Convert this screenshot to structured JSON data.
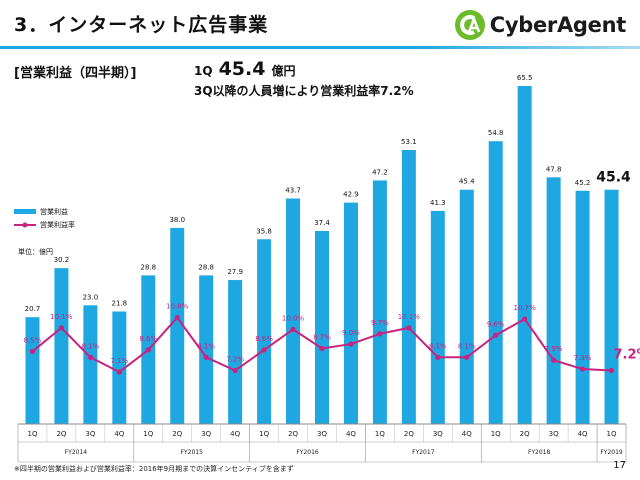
{
  "header": {
    "title": "3．インターネット広告事業",
    "logo_text": "CyberAgent"
  },
  "section_label": "[営業利益（四半期）]",
  "headline": {
    "prefix": "1Q",
    "value": "45.4",
    "suffix": "億円",
    "subline": "3Q以降の人員増により営業利益率7.2%"
  },
  "legend": {
    "bar_label": "営業利益",
    "line_label": "営業利益率"
  },
  "unit_label": "単位：億円",
  "footnote": "※四半期の営業利益および営業利益率：2016年9月期までの決算インセンティブを含まず",
  "page_number": "17",
  "colors": {
    "bar": "#1ea7e1",
    "line": "#c8237e",
    "rule": "#1ea7e1",
    "logo_green": "#6cbb2a"
  },
  "chart_data": {
    "type": "bar",
    "categories": [
      "1Q",
      "2Q",
      "3Q",
      "4Q",
      "1Q",
      "2Q",
      "3Q",
      "4Q",
      "1Q",
      "2Q",
      "3Q",
      "4Q",
      "1Q",
      "2Q",
      "3Q",
      "4Q",
      "1Q",
      "2Q",
      "3Q",
      "4Q",
      "1Q"
    ],
    "fiscal_years": [
      {
        "label": "FY2014",
        "count": 4
      },
      {
        "label": "FY2015",
        "count": 4
      },
      {
        "label": "FY2016",
        "count": 4
      },
      {
        "label": "FY2017",
        "count": 4
      },
      {
        "label": "FY2018",
        "count": 4
      },
      {
        "label": "FY2019",
        "count": 1
      }
    ],
    "series": [
      {
        "name": "営業利益",
        "kind": "bar",
        "values": [
          20.7,
          30.2,
          23.0,
          21.8,
          28.8,
          38.0,
          28.8,
          27.9,
          35.8,
          43.7,
          37.4,
          42.9,
          47.2,
          53.1,
          41.3,
          45.4,
          54.8,
          65.5,
          47.8,
          45.2,
          45.4
        ],
        "labels": [
          "20.7",
          "30.2",
          "23.0",
          "21.8",
          "28.8",
          "38.0",
          "28.8",
          "27.9",
          "35.8",
          "43.7",
          "37.4",
          "42.9",
          "47.2",
          "53.1",
          "41.3",
          "45.4",
          "54.8",
          "65.5",
          "47.8",
          "45.2",
          "45.4"
        ]
      },
      {
        "name": "営業利益率",
        "kind": "line",
        "values": [
          8.5,
          10.1,
          8.1,
          7.1,
          8.6,
          10.8,
          8.1,
          7.2,
          8.6,
          10.0,
          8.7,
          9.0,
          9.7,
          10.1,
          8.1,
          8.1,
          9.6,
          10.7,
          7.9,
          7.3,
          7.2
        ],
        "labels": [
          "8.5%",
          "10.1%",
          "8.1%",
          "7.1%",
          "8.6%",
          "10.8%",
          "8.1%",
          "7.2%",
          "8.6%",
          "10.0%",
          "8.7%",
          "9.0%",
          "9.7%",
          "10.1%",
          "8.1%",
          "8.1%",
          "9.6%",
          "10.7%",
          "7.9%",
          "7.3%",
          "7.2%"
        ]
      }
    ],
    "legend_position": "left",
    "grid": false
  }
}
